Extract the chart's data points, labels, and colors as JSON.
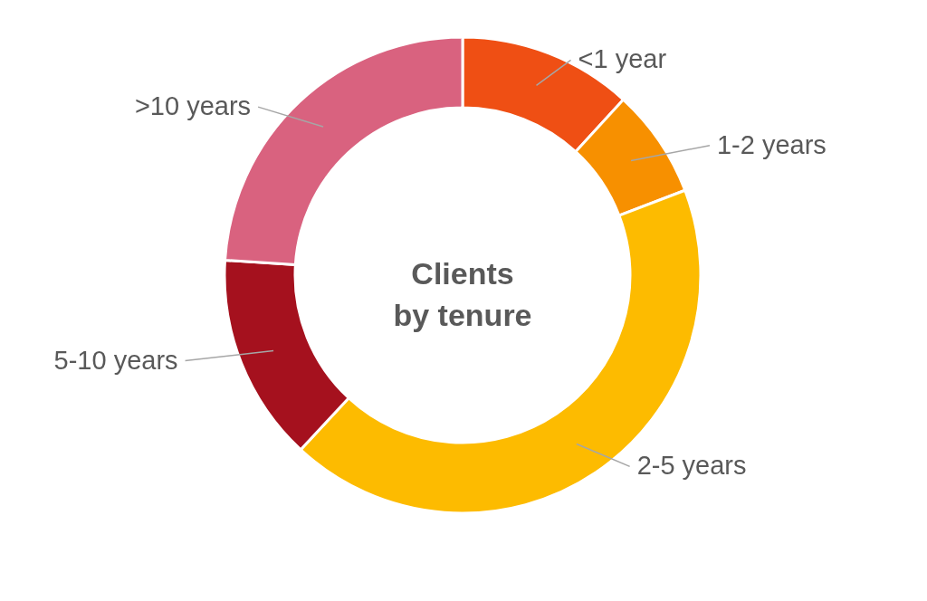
{
  "chart_data": {
    "type": "donut",
    "title": "Clients by tenure",
    "categories": [
      "<1 year",
      "1-2 years",
      "2-5 years",
      "5-10 years",
      ">10 years"
    ],
    "values": [
      11.8,
      7.4,
      42.7,
      14.1,
      24.0
    ],
    "colors": [
      "#ef4f14",
      "#f79000",
      "#fdbb00",
      "#a5111e",
      "#d9627f"
    ]
  }
}
